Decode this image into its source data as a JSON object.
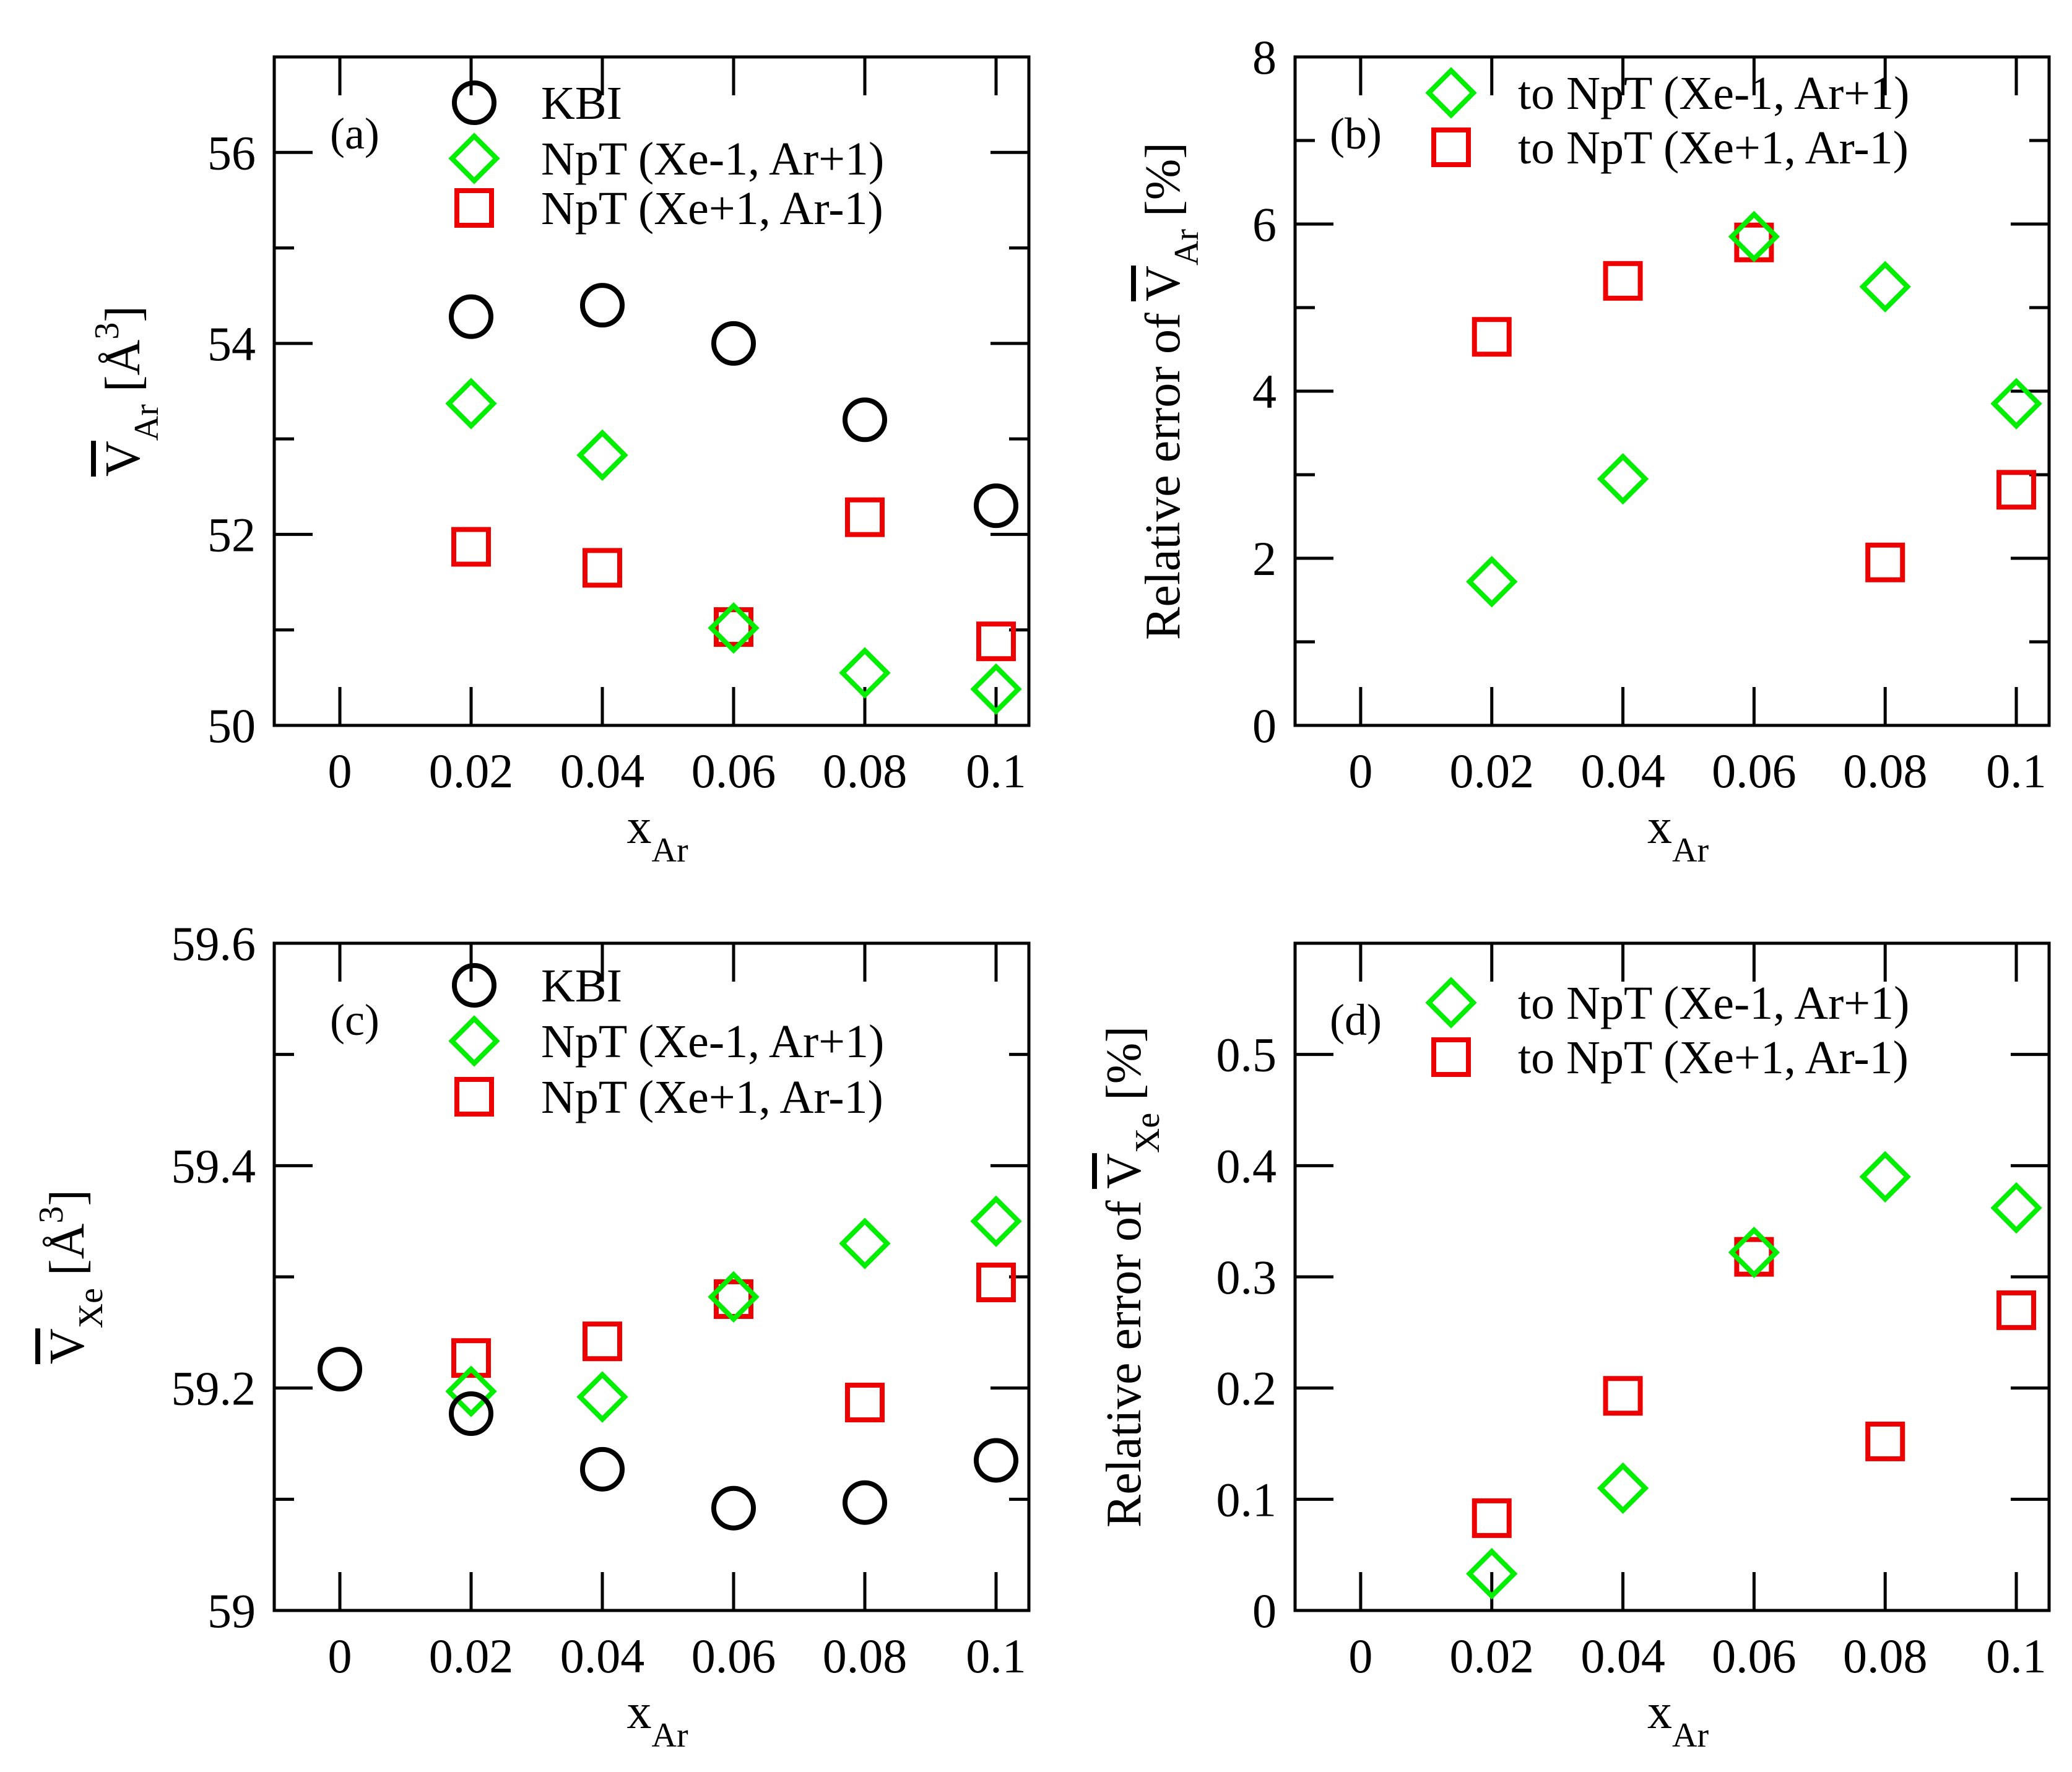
{
  "colors": {
    "kbi": "#000000",
    "xe_minus": "#00ee00",
    "xe_plus": "#ee0000",
    "axes": "#000000"
  },
  "chart_data": [
    {
      "id": "a",
      "type": "scatter",
      "panel_label": "(a)",
      "ylabel": {
        "base": "V",
        "bar": true,
        "sub": "Ar",
        "unit_open": "[",
        "unit": "Å",
        "unit_sup": "3",
        "unit_close": "]"
      },
      "xlabel": {
        "base": "x",
        "sub": "Ar"
      },
      "xlim": [
        -0.01,
        0.105
      ],
      "ylim": [
        50,
        57
      ],
      "xticks": [
        0,
        0.02,
        0.04,
        0.06,
        0.08,
        0.1
      ],
      "xtick_labels": [
        "0",
        "0.02",
        "0.04",
        "0.06",
        "0.08",
        "0.1"
      ],
      "yticks": [
        50,
        52,
        54,
        56
      ],
      "ytick_labels": [
        "50",
        "52",
        "54",
        "56"
      ],
      "ytick_minor": [
        51,
        53,
        55
      ],
      "legend": [
        {
          "label": "KBI",
          "marker": "circle",
          "color": "#000000"
        },
        {
          "label": "NpT (Xe-1, Ar+1)",
          "marker": "diamond",
          "color": "#00ee00"
        },
        {
          "label": "NpT (Xe+1, Ar-1)",
          "marker": "square",
          "color": "#ee0000"
        }
      ],
      "series": [
        {
          "name": "KBI",
          "marker": "circle",
          "color": "#000000",
          "x": [
            0.02,
            0.04,
            0.06,
            0.08,
            0.1
          ],
          "y": [
            54.28,
            54.4,
            54.0,
            53.2,
            52.3
          ]
        },
        {
          "name": "NpT (Xe-1, Ar+1)",
          "marker": "diamond",
          "color": "#00ee00",
          "x": [
            0.02,
            0.04,
            0.06,
            0.08,
            0.1
          ],
          "y": [
            53.37,
            52.83,
            51.02,
            50.55,
            50.38
          ]
        },
        {
          "name": "NpT (Xe+1, Ar-1)",
          "marker": "square",
          "color": "#ee0000",
          "x": [
            0.02,
            0.04,
            0.06,
            0.08,
            0.1
          ],
          "y": [
            51.87,
            51.65,
            51.03,
            52.18,
            50.88
          ]
        }
      ]
    },
    {
      "id": "b",
      "type": "scatter",
      "panel_label": "(b)",
      "ylabel": {
        "prefix": "Relative error of ",
        "base": "V",
        "bar": true,
        "sub": "Ar",
        "unit_open": "[",
        "unit": "%",
        "unit_close": "]"
      },
      "xlabel": {
        "base": "x",
        "sub": "Ar"
      },
      "xlim": [
        -0.01,
        0.105
      ],
      "ylim": [
        0,
        8
      ],
      "xticks": [
        0,
        0.02,
        0.04,
        0.06,
        0.08,
        0.1
      ],
      "xtick_labels": [
        "0",
        "0.02",
        "0.04",
        "0.06",
        "0.08",
        "0.1"
      ],
      "yticks": [
        0,
        2,
        4,
        6,
        8
      ],
      "ytick_labels": [
        "0",
        "2",
        "4",
        "6",
        "8"
      ],
      "ytick_minor": [
        1,
        3,
        5,
        7
      ],
      "legend": [
        {
          "label": "to NpT (Xe-1, Ar+1)",
          "marker": "diamond",
          "color": "#00ee00"
        },
        {
          "label": "to NpT (Xe+1, Ar-1)",
          "marker": "square",
          "color": "#ee0000"
        }
      ],
      "series": [
        {
          "name": "to NpT (Xe-1, Ar+1)",
          "marker": "diamond",
          "color": "#00ee00",
          "x": [
            0.02,
            0.04,
            0.06,
            0.08,
            0.1
          ],
          "y": [
            1.72,
            2.95,
            5.85,
            5.25,
            3.85
          ]
        },
        {
          "name": "to NpT (Xe+1, Ar-1)",
          "marker": "square",
          "color": "#ee0000",
          "x": [
            0.02,
            0.04,
            0.06,
            0.08,
            0.1
          ],
          "y": [
            4.65,
            5.32,
            5.78,
            1.95,
            2.82
          ]
        }
      ]
    },
    {
      "id": "c",
      "type": "scatter",
      "panel_label": "(c)",
      "ylabel": {
        "base": "V",
        "bar": true,
        "sub": "Xe",
        "unit_open": "[",
        "unit": "Å",
        "unit_sup": "3",
        "unit_close": "]"
      },
      "xlabel": {
        "base": "x",
        "sub": "Ar"
      },
      "xlim": [
        -0.01,
        0.105
      ],
      "ylim": [
        59.0,
        59.6
      ],
      "xticks": [
        0,
        0.02,
        0.04,
        0.06,
        0.08,
        0.1
      ],
      "xtick_labels": [
        "0",
        "0.02",
        "0.04",
        "0.06",
        "0.08",
        "0.1"
      ],
      "yticks": [
        59.0,
        59.2,
        59.4,
        59.6
      ],
      "ytick_labels": [
        "59",
        "59.2",
        "59.4",
        "59.6"
      ],
      "ytick_minor": [
        59.1,
        59.3,
        59.5
      ],
      "legend": [
        {
          "label": "KBI",
          "marker": "circle",
          "color": "#000000"
        },
        {
          "label": "NpT (Xe-1, Ar+1)",
          "marker": "diamond",
          "color": "#00ee00"
        },
        {
          "label": "NpT (Xe+1, Ar-1)",
          "marker": "square",
          "color": "#ee0000"
        }
      ],
      "series": [
        {
          "name": "KBI",
          "marker": "circle",
          "color": "#000000",
          "x": [
            0,
            0.02,
            0.04,
            0.06,
            0.08,
            0.1
          ],
          "y": [
            59.217,
            59.177,
            59.127,
            59.092,
            59.097,
            59.135
          ]
        },
        {
          "name": "NpT (Xe-1, Ar+1)",
          "marker": "diamond",
          "color": "#00ee00",
          "x": [
            0.02,
            0.04,
            0.06,
            0.08,
            0.1
          ],
          "y": [
            59.197,
            59.192,
            59.282,
            59.33,
            59.35
          ]
        },
        {
          "name": "NpT (Xe+1, Ar-1)",
          "marker": "square",
          "color": "#ee0000",
          "x": [
            0.02,
            0.04,
            0.06,
            0.08,
            0.1
          ],
          "y": [
            59.227,
            59.242,
            59.28,
            59.187,
            59.295
          ]
        }
      ]
    },
    {
      "id": "d",
      "type": "scatter",
      "panel_label": "(d)",
      "ylabel": {
        "prefix": "Relative error of ",
        "base": "V",
        "bar": true,
        "sub": "Xe",
        "unit_open": "[",
        "unit": "%",
        "unit_close": "]"
      },
      "xlabel": {
        "base": "x",
        "sub": "Ar"
      },
      "xlim": [
        -0.01,
        0.105
      ],
      "ylim": [
        0,
        0.6
      ],
      "xticks": [
        0,
        0.02,
        0.04,
        0.06,
        0.08,
        0.1
      ],
      "xtick_labels": [
        "0",
        "0.02",
        "0.04",
        "0.06",
        "0.08",
        "0.1"
      ],
      "yticks": [
        0,
        0.1,
        0.2,
        0.3,
        0.4,
        0.5
      ],
      "ytick_labels": [
        "0",
        "0.1",
        "0.2",
        "0.3",
        "0.4",
        "0.5"
      ],
      "ytick_minor": [],
      "legend": [
        {
          "label": "to NpT (Xe-1, Ar+1)",
          "marker": "diamond",
          "color": "#00ee00"
        },
        {
          "label": "to NpT (Xe+1, Ar-1)",
          "marker": "square",
          "color": "#ee0000"
        }
      ],
      "series": [
        {
          "name": "to NpT (Xe-1, Ar+1)",
          "marker": "diamond",
          "color": "#00ee00",
          "x": [
            0.02,
            0.04,
            0.06,
            0.08,
            0.1
          ],
          "y": [
            0.033,
            0.11,
            0.322,
            0.39,
            0.362
          ]
        },
        {
          "name": "to NpT (Xe+1, Ar-1)",
          "marker": "square",
          "color": "#ee0000",
          "x": [
            0.02,
            0.04,
            0.06,
            0.08,
            0.1
          ],
          "y": [
            0.083,
            0.193,
            0.318,
            0.152,
            0.27
          ]
        }
      ]
    }
  ]
}
